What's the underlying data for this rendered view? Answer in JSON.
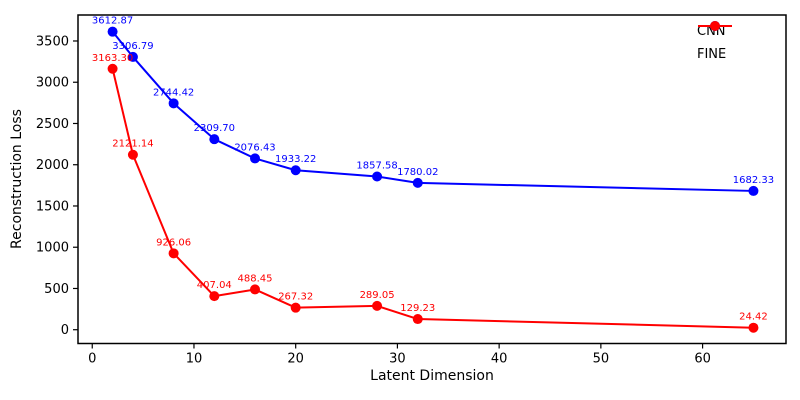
{
  "chart_data": {
    "type": "line",
    "title": "",
    "xlabel": "Latent Dimension",
    "ylabel": "Reconstruction Loss",
    "x_ticks": [
      0,
      10,
      20,
      30,
      40,
      50,
      60
    ],
    "y_ticks": [
      0,
      500,
      1000,
      1500,
      2000,
      2500,
      3000,
      3500
    ],
    "xlim": [
      -1.4,
      68.2
    ],
    "ylim": [
      -167,
      3815
    ],
    "grid": false,
    "legend_position": "upper right",
    "x": [
      2,
      4,
      8,
      12,
      16,
      20,
      28,
      32,
      65
    ],
    "series": [
      {
        "name": "CNN",
        "color": "#0000ff",
        "values": [
          3612.87,
          3306.79,
          2744.42,
          2309.7,
          2076.43,
          1933.22,
          1857.58,
          1780.02,
          1682.33
        ]
      },
      {
        "name": "FINE",
        "color": "#ff0000",
        "values": [
          3163.3,
          2121.14,
          926.06,
          407.04,
          488.45,
          267.32,
          289.05,
          129.23,
          24.42
        ]
      }
    ],
    "point_label_decimals": 2
  },
  "legend": {
    "items": [
      {
        "label": "CNN",
        "color": "#0000ff"
      },
      {
        "label": "FINE",
        "color": "#ff0000"
      }
    ]
  },
  "colors": {
    "axes": "#000000",
    "background": "#ffffff"
  }
}
